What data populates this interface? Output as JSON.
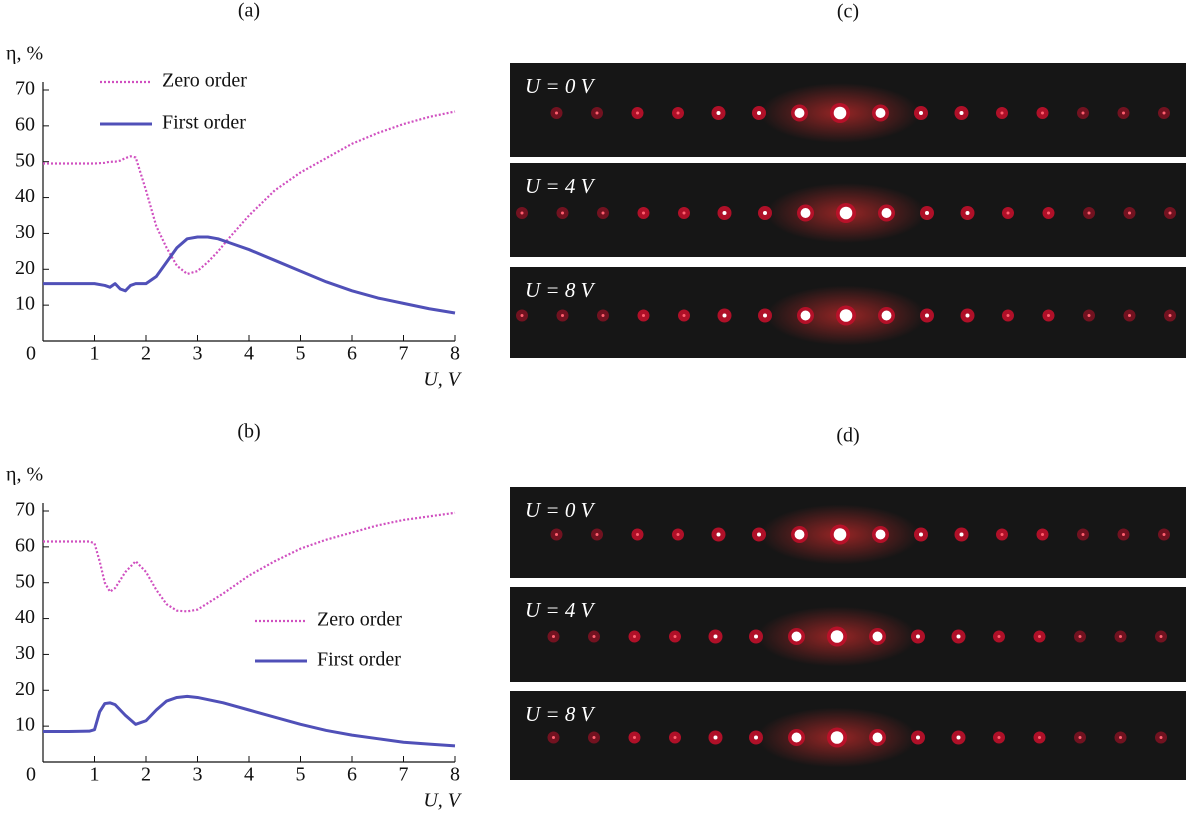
{
  "chart_data": [
    {
      "type": "line",
      "title": "(a)",
      "y_label": "η, %",
      "x_label": "U, V",
      "x": [
        0,
        0.5,
        1,
        1.2,
        1.3,
        1.4,
        1.5,
        1.6,
        1.7,
        1.8,
        2,
        2.2,
        2.4,
        2.6,
        2.8,
        3,
        3.2,
        3.4,
        3.6,
        4,
        4.5,
        5,
        5.5,
        6,
        6.5,
        7,
        7.5,
        8
      ],
      "series": [
        {
          "name": "Zero order",
          "color": "#d050c0",
          "style": "dotted",
          "values": [
            49.5,
            49.5,
            49.5,
            49.7,
            50,
            50,
            50.3,
            51,
            51.5,
            51.2,
            42,
            32,
            26,
            21,
            18.7,
            19.5,
            22,
            25,
            28.5,
            35,
            42,
            47,
            51,
            55,
            58,
            60.5,
            62.5,
            64
          ]
        },
        {
          "name": "First order",
          "color": "#5050b8",
          "style": "solid",
          "values": [
            16,
            16,
            16,
            15.5,
            15,
            16,
            14.5,
            14,
            15.5,
            16,
            16,
            18,
            22,
            26,
            28.5,
            29,
            29,
            28.5,
            27.5,
            25.5,
            22.5,
            19.5,
            16.5,
            14,
            12,
            10.5,
            9,
            7.8
          ]
        }
      ],
      "xlim": [
        0,
        8
      ],
      "ylim": [
        0,
        70
      ],
      "xticks": [
        0,
        1,
        2,
        3,
        4,
        5,
        6,
        7,
        8
      ],
      "yticks": [
        10,
        20,
        30,
        40,
        50,
        60,
        70
      ],
      "legend": "upper left"
    },
    {
      "type": "line",
      "title": "(b)",
      "y_label": "η, %",
      "x_label": "U, V",
      "x": [
        0,
        0.5,
        0.9,
        1,
        1.1,
        1.2,
        1.3,
        1.4,
        1.6,
        1.8,
        2,
        2.2,
        2.4,
        2.6,
        2.8,
        3,
        3.5,
        4,
        4.5,
        5,
        5.5,
        6,
        6.5,
        7,
        7.5,
        8
      ],
      "series": [
        {
          "name": "Zero order",
          "color": "#d050c0",
          "style": "dotted",
          "values": [
            61.5,
            61.5,
            61.5,
            61,
            56,
            50,
            47.5,
            48.5,
            53,
            56,
            53,
            48,
            44,
            42.2,
            42,
            42.5,
            47,
            52,
            56,
            59.5,
            62,
            64,
            66,
            67.5,
            68.5,
            69.5
          ]
        },
        {
          "name": "First order",
          "color": "#5050b8",
          "style": "solid",
          "values": [
            8.5,
            8.5,
            8.6,
            9,
            14,
            16.3,
            16.5,
            16,
            13,
            10.5,
            11.5,
            14.5,
            17,
            18,
            18.3,
            18,
            16.5,
            14.5,
            12.5,
            10.5,
            8.8,
            7.5,
            6.5,
            5.5,
            5,
            4.5
          ]
        }
      ],
      "xlim": [
        0,
        8
      ],
      "ylim": [
        0,
        70
      ],
      "xticks": [
        0,
        1,
        2,
        3,
        4,
        5,
        6,
        7,
        8
      ],
      "yticks": [
        10,
        20,
        30,
        40,
        50,
        60,
        70
      ],
      "legend": "center right"
    }
  ],
  "images": [
    {
      "label": "(c)",
      "strips": [
        "U = 0 V",
        "U = 4 V",
        "U = 8 V"
      ]
    },
    {
      "label": "(d)",
      "strips": [
        "U = 0 V",
        "U = 4 V",
        "U = 8 V"
      ]
    }
  ]
}
